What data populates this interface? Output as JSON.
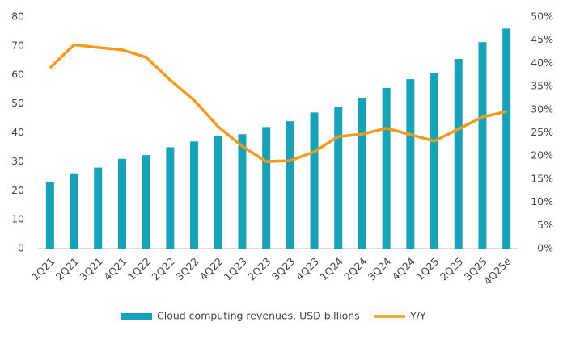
{
  "chart_data": {
    "type": "bar",
    "categories": [
      "1Q21",
      "2Q21",
      "3Q21",
      "4Q21",
      "1Q22",
      "2Q22",
      "3Q22",
      "4Q22",
      "1Q23",
      "2Q23",
      "3Q23",
      "4Q23",
      "1Q24",
      "2Q24",
      "3Q24",
      "4Q24",
      "1Q25",
      "2Q25",
      "3Q25",
      "4Q25e"
    ],
    "series": [
      {
        "name": "Cloud computing revenues, USD billions",
        "color": "#17a2b8",
        "type": "bar",
        "values": [
          23,
          26,
          28,
          31,
          32.3,
          35,
          37,
          39,
          39.5,
          42,
          44,
          47,
          49,
          52,
          55.5,
          58.5,
          60.5,
          65.5,
          71.3,
          76
        ]
      },
      {
        "name": "Y/Y",
        "color": "#f39a1e",
        "type": "line",
        "axis": "y2",
        "values": [
          39,
          44,
          43.4,
          42.9,
          41.3,
          36.4,
          32,
          26.3,
          22.1,
          18.8,
          19,
          20.9,
          24.2,
          24.7,
          26,
          24.6,
          23.2,
          25.8,
          28.4,
          29.6
        ]
      }
    ],
    "ylim": [
      0,
      80
    ],
    "yticks": [
      0,
      10,
      20,
      30,
      40,
      50,
      60,
      70,
      80
    ],
    "y2lim": [
      0,
      50
    ],
    "y2ticks": [
      {
        "value": 0,
        "label": "0%"
      },
      {
        "value": 5,
        "label": "5%"
      },
      {
        "value": 10,
        "label": "10%"
      },
      {
        "value": 15,
        "label": "15%"
      },
      {
        "value": 20,
        "label": "20%"
      },
      {
        "value": 25,
        "label": "25%"
      },
      {
        "value": 30,
        "label": "30%"
      },
      {
        "value": 35,
        "label": "35%"
      },
      {
        "value": 40,
        "label": "40%"
      },
      {
        "value": 45,
        "label": "45%"
      },
      {
        "value": 50,
        "label": "50%"
      }
    ],
    "legend": "bottom"
  }
}
